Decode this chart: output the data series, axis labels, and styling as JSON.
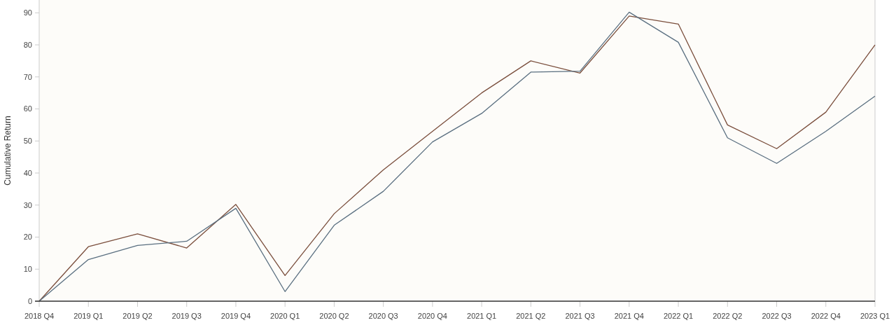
{
  "chart_data": {
    "type": "line",
    "ylabel": "Cumulative Return",
    "categories": [
      "2018 Q4",
      "2019 Q1",
      "2019 Q2",
      "2019 Q3",
      "2019 Q4",
      "2020 Q1",
      "2020 Q2",
      "2020 Q3",
      "2020 Q4",
      "2021 Q1",
      "2021 Q2",
      "2021 Q3",
      "2021 Q4",
      "2022 Q1",
      "2022 Q2",
      "2022 Q3",
      "2022 Q4",
      "2023 Q1"
    ],
    "series": [
      {
        "color": "#7a4e3c",
        "values": [
          0,
          17,
          21,
          16.6,
          30.2,
          8,
          27.3,
          41,
          53,
          65,
          75,
          71.2,
          89,
          86.5,
          55,
          47.6,
          59,
          80
        ]
      },
      {
        "color": "#5a6f80",
        "values": [
          0,
          13,
          17.4,
          18.7,
          29,
          3,
          23.7,
          34.3,
          49.7,
          58.6,
          71.5,
          71.8,
          90.2,
          80.8,
          51,
          43,
          53,
          64
        ]
      }
    ],
    "ylim": [
      0,
      94
    ],
    "yticks": [
      0,
      10,
      20,
      30,
      40,
      50,
      60,
      70,
      80,
      90
    ],
    "grid": false,
    "marker": "none",
    "line_style": "solid"
  }
}
